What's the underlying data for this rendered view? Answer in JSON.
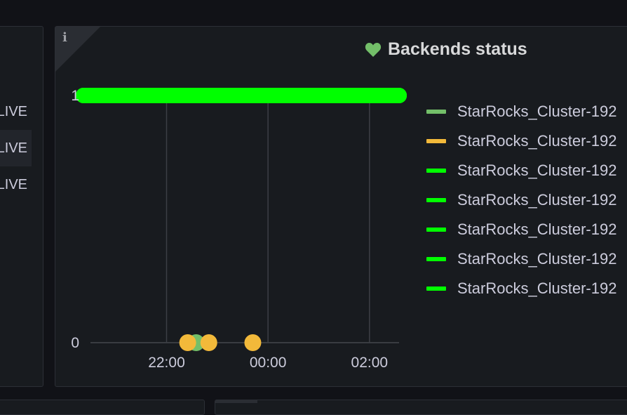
{
  "left_panel": {
    "rows": [
      {
        "text": "LIVE",
        "highlighted": false
      },
      {
        "text": "LIVE",
        "highlighted": true
      },
      {
        "text": "LIVE",
        "highlighted": false
      }
    ]
  },
  "panel": {
    "info_icon": "i",
    "title_icon": "heart-icon",
    "title": "Backends status",
    "title_icon_color": "#73bf69"
  },
  "chart_data": {
    "type": "line",
    "title": "Backends status",
    "y_ticks": [
      "1",
      "0"
    ],
    "x_ticks": [
      "22:00",
      "00:00",
      "02:00"
    ],
    "ylim": [
      0,
      1
    ],
    "xlim": [
      "20:30",
      "02:35"
    ],
    "grid": "vertical",
    "legend_position": "right",
    "series": [
      {
        "name": "StarRocks_Cluster-192",
        "color": "#73bf69",
        "segment": [],
        "points": [
          {
            "x": "22:35",
            "y": 0
          }
        ]
      },
      {
        "name": "StarRocks_Cluster-192",
        "color": "#f2b93a",
        "segment": [],
        "points": [
          {
            "x": "22:25",
            "y": 0
          },
          {
            "x": "22:50",
            "y": 0
          },
          {
            "x": "23:42",
            "y": 0
          }
        ]
      },
      {
        "name": "StarRocks_Cluster-192",
        "color": "#00ff00",
        "segment": [
          "20:30",
          "02:35"
        ],
        "points": []
      },
      {
        "name": "StarRocks_Cluster-192",
        "color": "#00ff00",
        "segment": [
          "20:30",
          "02:35"
        ],
        "points": []
      },
      {
        "name": "StarRocks_Cluster-192",
        "color": "#00ff00",
        "segment": [
          "20:30",
          "02:35"
        ],
        "points": []
      },
      {
        "name": "StarRocks_Cluster-192",
        "color": "#00ff00",
        "segment": [
          "20:30",
          "02:35"
        ],
        "points": []
      },
      {
        "name": "StarRocks_Cluster-192",
        "color": "#00ff00",
        "segment": [
          "20:30",
          "02:35"
        ],
        "points": []
      }
    ]
  }
}
